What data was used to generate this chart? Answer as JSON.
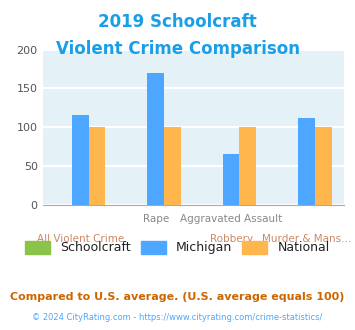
{
  "title_line1": "2019 Schoolcraft",
  "title_line2": "Violent Crime Comparison",
  "title_color": "#1a9ee8",
  "schoolcraft_values": [
    0,
    0,
    0,
    0
  ],
  "michigan_values": [
    115,
    170,
    65,
    112
  ],
  "national_values": [
    100,
    100,
    100,
    100
  ],
  "schoolcraft_color": "#8bc34a",
  "michigan_color": "#4da6ff",
  "national_color": "#ffb74d",
  "ylim": [
    0,
    200
  ],
  "yticks": [
    0,
    50,
    100,
    150,
    200
  ],
  "background_color": "#e4f2f8",
  "grid_color": "#ffffff",
  "x_labels_top": [
    "",
    "Rape",
    "Aggravated Assault",
    ""
  ],
  "x_labels_bottom": [
    "All Violent Crime",
    "",
    "Robbery",
    "Murder & Mans..."
  ],
  "top_label_color": "#888888",
  "bottom_label_color": "#cc8866",
  "footer_text": "© 2024 CityRating.com - https://www.cityrating.com/crime-statistics/",
  "compare_text": "Compared to U.S. average. (U.S. average equals 100)",
  "compare_color": "#cc6600",
  "footer_color": "#4da6ff",
  "legend_label_color": "#222222"
}
